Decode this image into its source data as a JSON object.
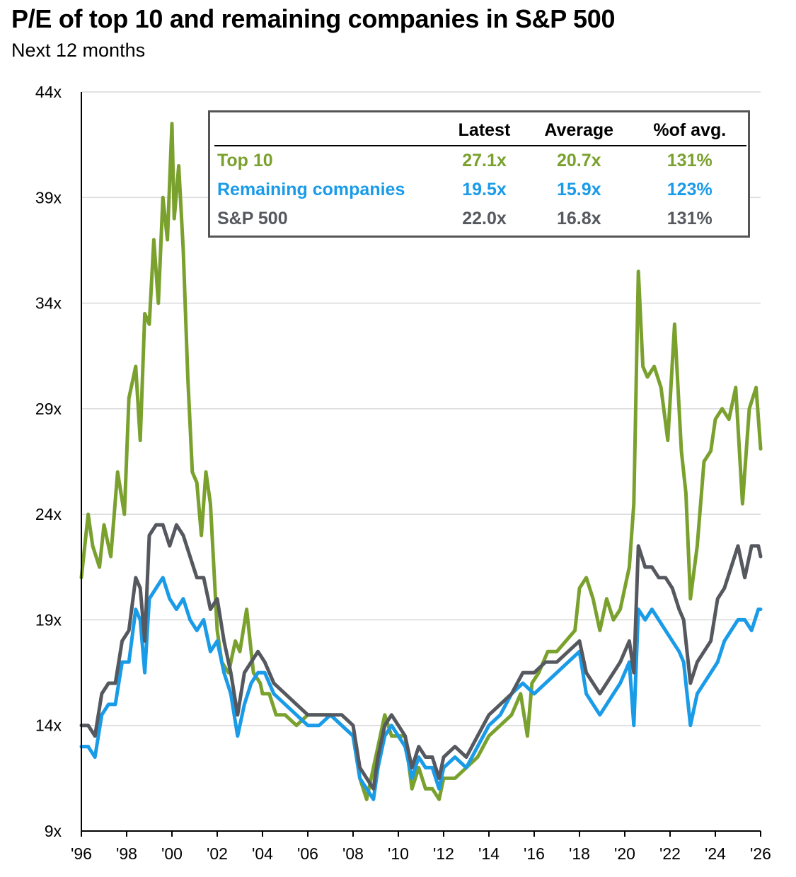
{
  "title": "P/E of top 10 and remaining companies in S&P 500",
  "subtitle": "Next 12 months",
  "colors": {
    "top10": "#7aa12e",
    "remaining": "#1a9be8",
    "sp500": "#55585e",
    "grid": "#d9d9d9"
  },
  "legend": {
    "headers": [
      "",
      "Latest",
      "Average",
      "%of avg."
    ],
    "rows": [
      {
        "name": "Top 10",
        "latest": "27.1x",
        "average": "20.7x",
        "pct": "131%",
        "color": "#7aa12e"
      },
      {
        "name": "Remaining companies",
        "latest": "19.5x",
        "average": "15.9x",
        "pct": "123%",
        "color": "#1a9be8"
      },
      {
        "name": "S&P 500",
        "latest": "22.0x",
        "average": "16.8x",
        "pct": "131%",
        "color": "#55585e"
      }
    ]
  },
  "chart_data": {
    "type": "line",
    "title": "P/E of top 10 and remaining companies in S&P 500",
    "subtitle": "Next 12 months",
    "xlabel": "",
    "ylabel": "",
    "xlim": [
      1996,
      2026
    ],
    "ylim": [
      9,
      44
    ],
    "y_ticks": [
      9,
      14,
      19,
      24,
      29,
      34,
      39,
      44
    ],
    "y_tick_labels": [
      "9x",
      "14x",
      "19x",
      "24x",
      "29x",
      "34x",
      "39x",
      "44x"
    ],
    "x_ticks": [
      1996,
      1998,
      2000,
      2002,
      2004,
      2006,
      2008,
      2010,
      2012,
      2014,
      2016,
      2018,
      2020,
      2022,
      2024,
      2026
    ],
    "x_tick_labels": [
      "'96",
      "'98",
      "'00",
      "'02",
      "'04",
      "'06",
      "'08",
      "'10",
      "'12",
      "'14",
      "'16",
      "'18",
      "'20",
      "'22",
      "'24",
      "'26"
    ],
    "grid": true,
    "series": [
      {
        "name": "Top 10",
        "color": "#7aa12e",
        "x": [
          1996.0,
          1996.3,
          1996.5,
          1996.8,
          1997.0,
          1997.3,
          1997.6,
          1997.9,
          1998.1,
          1998.4,
          1998.6,
          1998.8,
          1999.0,
          1999.2,
          1999.4,
          1999.6,
          1999.8,
          2000.0,
          2000.1,
          2000.3,
          2000.5,
          2000.7,
          2000.9,
          2001.1,
          2001.3,
          2001.5,
          2001.7,
          2002.0,
          2002.2,
          2002.5,
          2002.8,
          2003.0,
          2003.3,
          2003.6,
          2003.9,
          2004.0,
          2004.3,
          2004.6,
          2005.0,
          2005.5,
          2006.0,
          2006.5,
          2007.0,
          2007.5,
          2008.0,
          2008.3,
          2008.6,
          2008.9,
          2009.1,
          2009.4,
          2009.7,
          2010.0,
          2010.3,
          2010.6,
          2010.9,
          2011.2,
          2011.5,
          2011.8,
          2012.0,
          2012.5,
          2013.0,
          2013.5,
          2014.0,
          2014.5,
          2015.0,
          2015.4,
          2015.7,
          2015.9,
          2016.2,
          2016.6,
          2017.0,
          2017.4,
          2017.8,
          2018.0,
          2018.3,
          2018.6,
          2018.9,
          2019.2,
          2019.5,
          2019.8,
          2020.0,
          2020.2,
          2020.4,
          2020.6,
          2020.8,
          2021.0,
          2021.3,
          2021.6,
          2021.9,
          2022.2,
          2022.5,
          2022.7,
          2022.9,
          2023.2,
          2023.5,
          2023.8,
          2024.0,
          2024.3,
          2024.6,
          2024.9,
          2025.2,
          2025.5,
          2025.8,
          2026.0
        ],
        "values": [
          21.0,
          24.0,
          22.5,
          21.5,
          23.5,
          22.0,
          26.0,
          24.0,
          29.5,
          31.0,
          27.5,
          33.5,
          33.0,
          37.0,
          34.0,
          39.0,
          37.0,
          42.5,
          38.0,
          40.5,
          36.5,
          30.5,
          26.0,
          25.5,
          23.0,
          26.0,
          24.5,
          18.5,
          17.0,
          16.5,
          18.0,
          17.5,
          19.5,
          16.5,
          16.0,
          15.5,
          15.5,
          14.5,
          14.5,
          14.0,
          14.5,
          14.5,
          14.5,
          14.0,
          13.5,
          11.5,
          10.5,
          12.0,
          13.0,
          14.5,
          13.5,
          13.5,
          13.5,
          11.0,
          12.0,
          11.0,
          11.0,
          10.5,
          11.5,
          11.5,
          12.0,
          12.5,
          13.5,
          14.0,
          14.5,
          15.5,
          13.5,
          16.0,
          16.5,
          17.5,
          17.5,
          18.0,
          18.5,
          20.5,
          21.0,
          20.0,
          18.5,
          20.0,
          19.0,
          19.5,
          20.5,
          21.5,
          24.5,
          35.5,
          31.0,
          30.5,
          31.0,
          30.0,
          27.5,
          33.0,
          27.0,
          25.0,
          20.0,
          22.5,
          26.5,
          27.0,
          28.5,
          29.0,
          28.5,
          30.0,
          24.5,
          29.0,
          30.0,
          27.1
        ]
      },
      {
        "name": "Remaining companies",
        "color": "#1a9be8",
        "x": [
          1996.0,
          1996.3,
          1996.6,
          1996.9,
          1997.2,
          1997.5,
          1997.8,
          1998.1,
          1998.4,
          1998.6,
          1998.8,
          1999.0,
          1999.3,
          1999.6,
          1999.9,
          2000.2,
          2000.5,
          2000.8,
          2001.1,
          2001.4,
          2001.7,
          2002.0,
          2002.3,
          2002.6,
          2002.9,
          2003.2,
          2003.5,
          2003.8,
          2004.1,
          2004.5,
          2005.0,
          2005.5,
          2006.0,
          2006.5,
          2007.0,
          2007.5,
          2008.0,
          2008.3,
          2008.6,
          2008.9,
          2009.1,
          2009.4,
          2009.7,
          2010.0,
          2010.3,
          2010.6,
          2010.9,
          2011.2,
          2011.5,
          2011.8,
          2012.0,
          2012.5,
          2013.0,
          2013.5,
          2014.0,
          2014.5,
          2015.0,
          2015.5,
          2016.0,
          2016.5,
          2017.0,
          2017.5,
          2018.0,
          2018.3,
          2018.6,
          2018.9,
          2019.2,
          2019.5,
          2019.8,
          2020.0,
          2020.2,
          2020.4,
          2020.6,
          2020.9,
          2021.2,
          2021.5,
          2021.8,
          2022.1,
          2022.4,
          2022.6,
          2022.9,
          2023.2,
          2023.5,
          2023.8,
          2024.1,
          2024.4,
          2024.7,
          2025.0,
          2025.3,
          2025.6,
          2025.9,
          2026.0
        ],
        "values": [
          13.0,
          13.0,
          12.5,
          14.5,
          15.0,
          15.0,
          17.0,
          17.0,
          19.5,
          19.0,
          16.5,
          20.0,
          20.5,
          21.0,
          20.0,
          19.5,
          20.0,
          19.0,
          18.5,
          19.0,
          17.5,
          18.0,
          16.5,
          15.5,
          13.5,
          15.0,
          16.0,
          16.5,
          16.5,
          15.5,
          15.0,
          14.5,
          14.0,
          14.0,
          14.5,
          14.0,
          13.5,
          11.5,
          11.0,
          10.5,
          12.0,
          13.5,
          14.0,
          13.5,
          13.0,
          11.5,
          12.5,
          12.0,
          12.0,
          11.0,
          12.0,
          12.5,
          12.0,
          13.0,
          14.0,
          14.5,
          15.5,
          16.0,
          15.5,
          16.0,
          16.5,
          17.0,
          17.5,
          15.5,
          15.0,
          14.5,
          15.0,
          15.5,
          16.0,
          16.5,
          17.0,
          14.0,
          19.5,
          19.0,
          19.5,
          19.0,
          18.5,
          18.0,
          17.5,
          17.0,
          14.0,
          15.5,
          16.0,
          16.5,
          17.0,
          18.0,
          18.5,
          19.0,
          19.0,
          18.5,
          19.5,
          19.5
        ]
      },
      {
        "name": "S&P 500",
        "color": "#55585e",
        "x": [
          1996.0,
          1996.3,
          1996.6,
          1996.9,
          1997.2,
          1997.5,
          1997.8,
          1998.1,
          1998.4,
          1998.6,
          1998.8,
          1999.0,
          1999.3,
          1999.6,
          1999.9,
          2000.2,
          2000.5,
          2000.8,
          2001.1,
          2001.4,
          2001.7,
          2002.0,
          2002.3,
          2002.6,
          2002.9,
          2003.2,
          2003.5,
          2003.8,
          2004.1,
          2004.5,
          2005.0,
          2005.5,
          2006.0,
          2006.5,
          2007.0,
          2007.5,
          2008.0,
          2008.3,
          2008.6,
          2008.9,
          2009.1,
          2009.4,
          2009.7,
          2010.0,
          2010.3,
          2010.6,
          2010.9,
          2011.2,
          2011.5,
          2011.8,
          2012.0,
          2012.5,
          2013.0,
          2013.5,
          2014.0,
          2014.5,
          2015.0,
          2015.5,
          2016.0,
          2016.5,
          2017.0,
          2017.5,
          2018.0,
          2018.3,
          2018.6,
          2018.9,
          2019.2,
          2019.5,
          2019.8,
          2020.0,
          2020.2,
          2020.4,
          2020.6,
          2020.9,
          2021.2,
          2021.5,
          2021.8,
          2022.1,
          2022.4,
          2022.6,
          2022.9,
          2023.2,
          2023.5,
          2023.8,
          2024.1,
          2024.4,
          2024.7,
          2025.0,
          2025.3,
          2025.6,
          2025.9,
          2026.0
        ],
        "values": [
          14.0,
          14.0,
          13.5,
          15.5,
          16.0,
          16.0,
          18.0,
          18.5,
          21.0,
          20.5,
          18.0,
          23.0,
          23.5,
          23.5,
          22.5,
          23.5,
          23.0,
          22.0,
          21.0,
          21.0,
          19.5,
          20.0,
          18.0,
          16.5,
          14.5,
          16.5,
          17.0,
          17.5,
          17.0,
          16.0,
          15.5,
          15.0,
          14.5,
          14.5,
          14.5,
          14.5,
          14.0,
          12.0,
          11.5,
          11.0,
          12.5,
          14.0,
          14.5,
          14.0,
          13.5,
          12.0,
          13.0,
          12.5,
          12.5,
          11.5,
          12.5,
          13.0,
          12.5,
          13.5,
          14.5,
          15.0,
          15.5,
          16.5,
          16.5,
          17.0,
          17.0,
          17.5,
          18.0,
          16.5,
          16.0,
          15.5,
          16.0,
          16.5,
          17.0,
          17.5,
          18.0,
          16.5,
          22.5,
          21.5,
          21.5,
          21.0,
          21.0,
          20.5,
          19.5,
          19.0,
          16.0,
          17.0,
          17.5,
          18.0,
          20.0,
          20.5,
          21.5,
          22.5,
          21.0,
          22.5,
          22.5,
          22.0
        ]
      }
    ]
  }
}
